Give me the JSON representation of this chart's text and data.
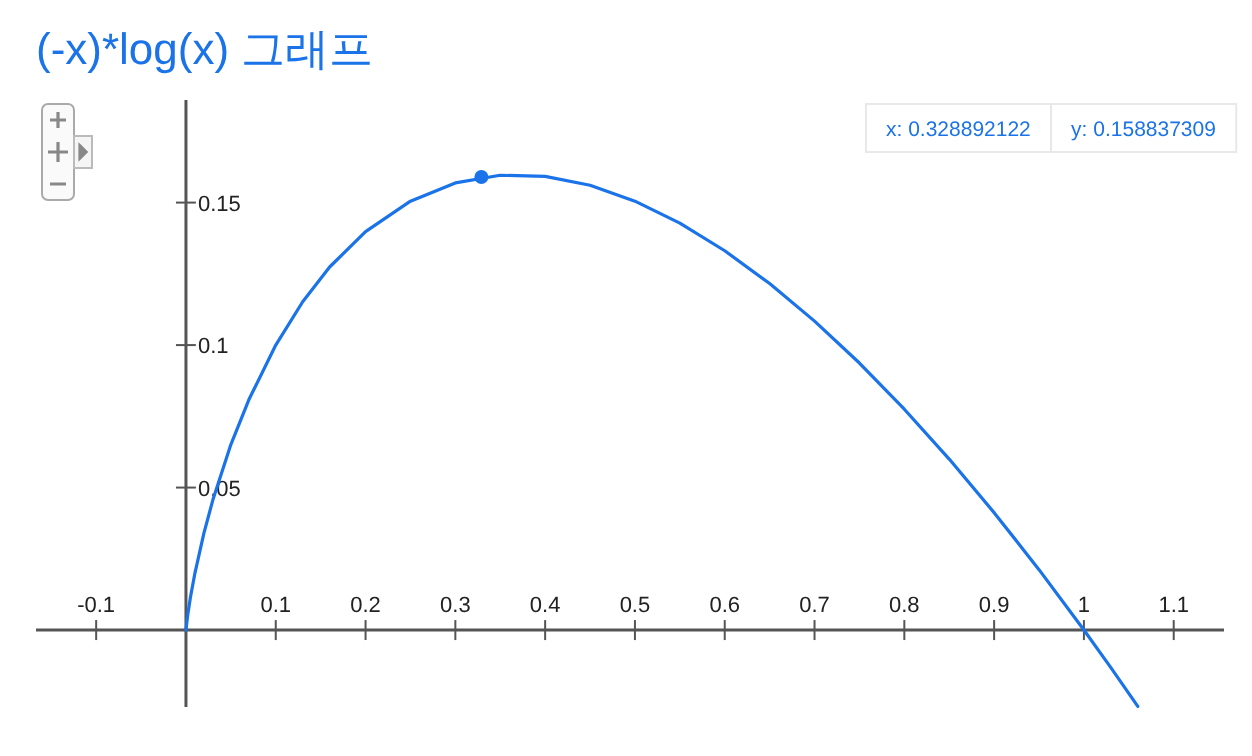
{
  "chart_data": {
    "type": "line",
    "title": "(-x)*log(x) 그래프",
    "xlim": [
      -0.167,
      1.156
    ],
    "ylim": [
      -0.027,
      0.186
    ],
    "xticks": [
      -0.1,
      0.1,
      0.2,
      0.3,
      0.4,
      0.5,
      0.6,
      0.7,
      0.8,
      0.9,
      1,
      1.1
    ],
    "yticks": [
      0.05,
      0.1,
      0.15
    ],
    "grid": false,
    "series": [
      {
        "color": "#1a73e8",
        "marker": "none",
        "x": [
          0,
          0.002,
          0.005,
          0.01,
          0.02,
          0.03,
          0.05,
          0.07,
          0.1,
          0.13,
          0.16,
          0.2,
          0.25,
          0.3,
          0.35,
          0.4,
          0.45,
          0.5,
          0.55,
          0.6,
          0.65,
          0.7,
          0.75,
          0.8,
          0.85,
          0.9,
          0.95,
          1,
          1.03,
          1.06
        ],
        "values": [
          0,
          0.0054,
          0.0115,
          0.02,
          0.034,
          0.0457,
          0.0651,
          0.0808,
          0.1,
          0.1152,
          0.1274,
          0.1398,
          0.1505,
          0.1569,
          0.1596,
          0.1592,
          0.1561,
          0.1505,
          0.1428,
          0.1331,
          0.1216,
          0.1084,
          0.0937,
          0.0775,
          0.06,
          0.0412,
          0.0212,
          0,
          -0.0132,
          -0.0268
        ]
      },
      {
        "type": "scatter",
        "color": "#1a73e8",
        "marker": "circle",
        "x": [
          0.329
        ],
        "values": [
          0.159
        ]
      }
    ],
    "annotations": [
      "x: 0.328892122",
      "y: 0.158837309"
    ]
  }
}
